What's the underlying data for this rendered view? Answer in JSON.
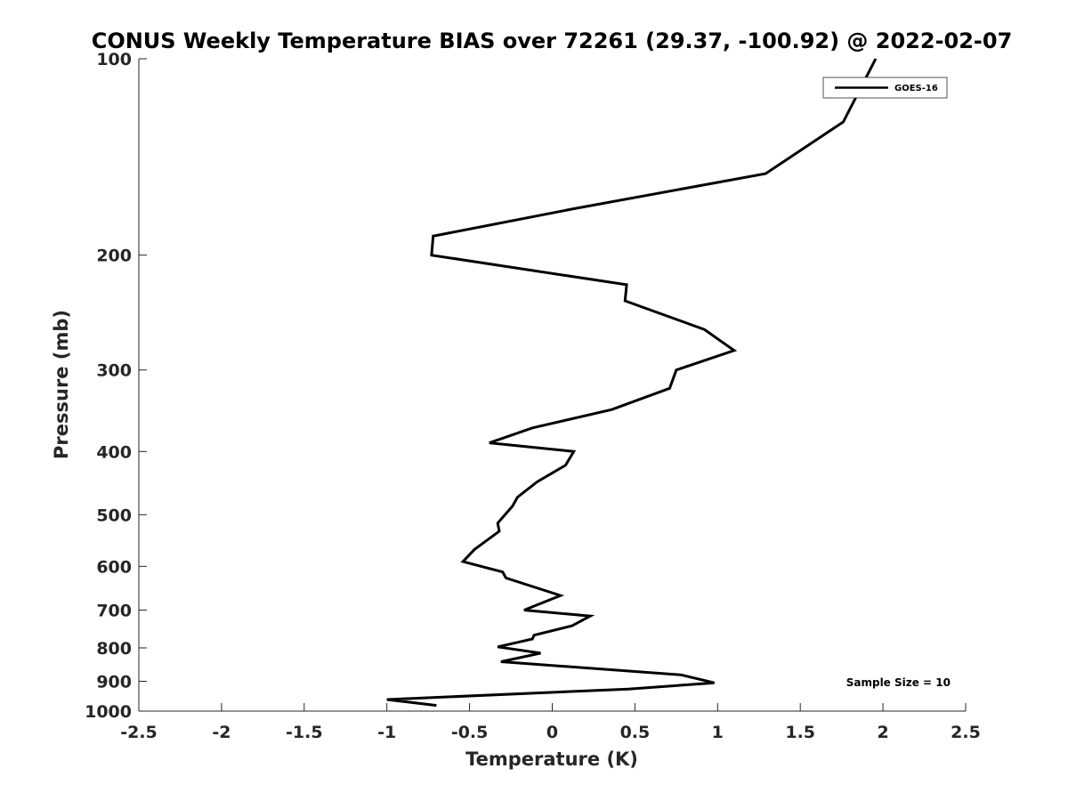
{
  "chart_data": {
    "type": "line",
    "title": "CONUS Weekly Temperature BIAS over 72261 (29.37, -100.92) @ 2022-02-07",
    "xlabel": "Temperature (K)",
    "ylabel": "Pressure (mb)",
    "xlim": [
      -2.5,
      2.5
    ],
    "ylim": [
      100,
      1000
    ],
    "y_scale": "log",
    "y_reversed": true,
    "x_ticks": [
      -2.5,
      -2,
      -1.5,
      -1,
      -0.5,
      0,
      0.5,
      1,
      1.5,
      2,
      2.5
    ],
    "x_tick_labels": [
      "-2.5",
      "-2",
      "-1.5",
      "-1",
      "-0.5",
      "0",
      "0.5",
      "1",
      "1.5",
      "2",
      "2.5"
    ],
    "y_ticks": [
      100,
      200,
      300,
      400,
      500,
      600,
      700,
      800,
      900,
      1000
    ],
    "y_tick_labels": [
      "100",
      "200",
      "300",
      "400",
      "500",
      "600",
      "700",
      "800",
      "900",
      "1000"
    ],
    "grid": false,
    "legend_position": "top-right",
    "line_color": "#000000",
    "series": [
      {
        "name": "GOES-16",
        "x": [
          1.93,
          1.76,
          1.29,
          0.12,
          -0.72,
          -0.73,
          0.45,
          0.44,
          0.92,
          1.1,
          0.75,
          0.71,
          0.36,
          -0.12,
          -0.38,
          0.13,
          0.08,
          -0.09,
          -0.21,
          -0.24,
          -0.33,
          -0.32,
          -0.47,
          -0.54,
          -0.3,
          -0.28,
          0.05,
          -0.17,
          0.23,
          0.12,
          -0.11,
          -0.12,
          -0.33,
          -0.07,
          -0.31,
          0.78,
          0.98,
          0.46,
          -1.0,
          -0.7
        ],
        "y": [
          103,
          125,
          150,
          170,
          187,
          200,
          222,
          235,
          260,
          280,
          300,
          320,
          345,
          368,
          388,
          400,
          420,
          445,
          470,
          485,
          515,
          530,
          565,
          590,
          612,
          625,
          665,
          700,
          715,
          740,
          765,
          775,
          797,
          815,
          840,
          880,
          905,
          925,
          960,
          980
        ]
      }
    ],
    "annotations": [
      {
        "text": "Sample Size = 10",
        "position": "bottom-right"
      }
    ]
  }
}
